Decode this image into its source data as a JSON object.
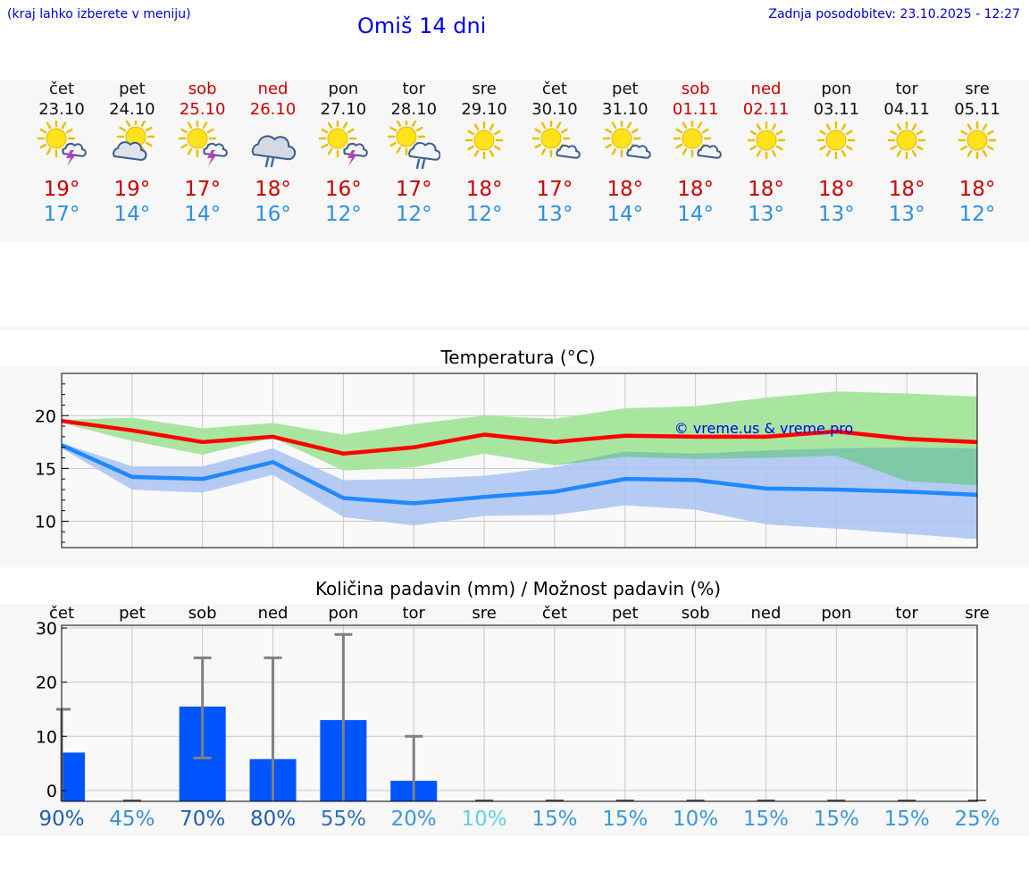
{
  "header": {
    "left_note": "(kraj lahko izberete v meniju)",
    "title": "Omiš 14 dni",
    "updated": "Zadnja posodobitev: 23.10.2025 - 12:27"
  },
  "colors": {
    "weekday": "#111111",
    "weekend": "#cc0000",
    "max_temp": "#cc0000",
    "min_temp": "#2b8fe8",
    "max_band": "#a8e6a0",
    "min_band": "#a9c3f2",
    "overlap_band": "#7fc8a8",
    "max_line": "#ff0000",
    "min_line": "#2088ff",
    "bar": "#0055ff",
    "error_bar": "#808080"
  },
  "days": [
    {
      "name": "čet",
      "date": "23.10",
      "weekend": false,
      "icon": "sun-cloud-thunder-icon",
      "max": "19°",
      "min": "17°",
      "pct": "90%",
      "pct_color": "#2060b0"
    },
    {
      "name": "pet",
      "date": "24.10",
      "weekend": false,
      "icon": "sun-cloud-icon",
      "max": "19°",
      "min": "14°",
      "pct": "45%",
      "pct_color": "#3a8fd0"
    },
    {
      "name": "sob",
      "date": "25.10",
      "weekend": true,
      "icon": "sun-cloud-thunder-icon",
      "max": "17°",
      "min": "14°",
      "pct": "70%",
      "pct_color": "#2060b0"
    },
    {
      "name": "ned",
      "date": "26.10",
      "weekend": true,
      "icon": "cloud-rain-icon",
      "max": "18°",
      "min": "16°",
      "pct": "80%",
      "pct_color": "#2060b0"
    },
    {
      "name": "pon",
      "date": "27.10",
      "weekend": false,
      "icon": "sun-cloud-thunder-icon",
      "max": "16°",
      "min": "12°",
      "pct": "55%",
      "pct_color": "#2a70c0"
    },
    {
      "name": "tor",
      "date": "28.10",
      "weekend": false,
      "icon": "sun-cloud-rain-icon",
      "max": "17°",
      "min": "12°",
      "pct": "20%",
      "pct_color": "#3a98d8"
    },
    {
      "name": "sre",
      "date": "29.10",
      "weekend": false,
      "icon": "sun-icon",
      "max": "18°",
      "min": "12°",
      "pct": "10%",
      "pct_color": "#60d0e0"
    },
    {
      "name": "čet",
      "date": "30.10",
      "weekend": false,
      "icon": "sun-small-cloud-icon",
      "max": "17°",
      "min": "13°",
      "pct": "15%",
      "pct_color": "#3a98d8"
    },
    {
      "name": "pet",
      "date": "31.10",
      "weekend": false,
      "icon": "sun-small-cloud-icon",
      "max": "18°",
      "min": "14°",
      "pct": "15%",
      "pct_color": "#3a98d8"
    },
    {
      "name": "sob",
      "date": "01.11",
      "weekend": true,
      "icon": "sun-small-cloud-icon",
      "max": "18°",
      "min": "14°",
      "pct": "10%",
      "pct_color": "#3a98d8"
    },
    {
      "name": "ned",
      "date": "02.11",
      "weekend": true,
      "icon": "sun-icon",
      "max": "18°",
      "min": "13°",
      "pct": "15%",
      "pct_color": "#3a98d8"
    },
    {
      "name": "pon",
      "date": "03.11",
      "weekend": false,
      "icon": "sun-icon",
      "max": "18°",
      "min": "13°",
      "pct": "15%",
      "pct_color": "#3a98d8"
    },
    {
      "name": "tor",
      "date": "04.11",
      "weekend": false,
      "icon": "sun-icon",
      "max": "18°",
      "min": "13°",
      "pct": "15%",
      "pct_color": "#3a98d8"
    },
    {
      "name": "sre",
      "date": "05.11",
      "weekend": false,
      "icon": "sun-icon",
      "max": "18°",
      "min": "12°",
      "pct": "25%",
      "pct_color": "#3a98d8"
    }
  ],
  "chart_data": [
    {
      "type": "area",
      "title": "Temperatura (°C)",
      "ylim": [
        7.5,
        24
      ],
      "yticks": [
        10,
        15,
        20
      ],
      "grid": true,
      "watermark": "© vreme.us & vreme.pro",
      "x": [
        0,
        1,
        2,
        3,
        4,
        5,
        6,
        7,
        8,
        9,
        10,
        11,
        12,
        13
      ],
      "series": [
        {
          "name": "max",
          "values": [
            19.5,
            18.6,
            17.5,
            18.0,
            16.4,
            17.0,
            18.2,
            17.5,
            18.1,
            18.0,
            18.0,
            18.5,
            17.8,
            17.5
          ]
        },
        {
          "name": "min",
          "values": [
            17.2,
            14.2,
            14.0,
            15.6,
            12.2,
            11.7,
            12.3,
            12.8,
            14.0,
            13.9,
            13.1,
            13.0,
            12.8,
            12.5
          ]
        },
        {
          "name": "max_band_high",
          "values": [
            19.6,
            19.8,
            18.8,
            19.3,
            18.2,
            19.2,
            20.0,
            19.7,
            20.7,
            20.9,
            21.7,
            22.3,
            22.1,
            21.8
          ]
        },
        {
          "name": "max_band_low",
          "values": [
            19.3,
            17.6,
            16.3,
            17.9,
            14.8,
            15.1,
            16.4,
            15.3,
            16.1,
            15.9,
            16.0,
            16.2,
            13.8,
            13.4
          ]
        },
        {
          "name": "min_band_high",
          "values": [
            17.4,
            15.2,
            15.2,
            16.9,
            13.9,
            14.0,
            14.3,
            15.1,
            16.6,
            16.4,
            16.7,
            16.9,
            17.0,
            16.9
          ]
        },
        {
          "name": "min_band_low",
          "values": [
            16.9,
            13.0,
            12.7,
            14.4,
            10.4,
            9.6,
            10.5,
            10.6,
            11.5,
            11.1,
            9.7,
            9.3,
            8.8,
            8.3
          ]
        }
      ]
    },
    {
      "type": "bar",
      "title": "Količina padavin (mm) / Možnost padavin (%)",
      "ylim": [
        -2,
        30.5
      ],
      "yticks": [
        0,
        10,
        20,
        30
      ],
      "grid": true,
      "categories": [
        "čet",
        "pet",
        "sob",
        "ned",
        "pon",
        "tor",
        "sre",
        "čet",
        "pet",
        "sob",
        "ned",
        "pon",
        "tor",
        "sre"
      ],
      "values": [
        7.0,
        0,
        15.5,
        5.8,
        13.0,
        1.8,
        0,
        0,
        0,
        0,
        0,
        0,
        0,
        0
      ],
      "error_low": [
        0,
        0,
        6.0,
        0,
        0,
        0,
        0,
        0,
        0,
        0,
        0,
        0,
        0,
        0
      ],
      "error_high": [
        15.0,
        0,
        24.5,
        24.5,
        28.8,
        10.0,
        0,
        0,
        0,
        0,
        0,
        0,
        0,
        0
      ],
      "probability": [
        "90%",
        "45%",
        "70%",
        "80%",
        "55%",
        "20%",
        "10%",
        "15%",
        "15%",
        "10%",
        "15%",
        "15%",
        "15%",
        "25%"
      ]
    }
  ]
}
